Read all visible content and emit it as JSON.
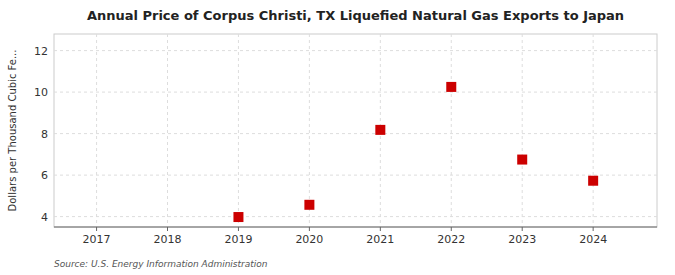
{
  "chart_data": {
    "type": "scatter",
    "title": "Annual Price of Corpus Christi, TX  Liquefied Natural Gas Exports to Japan",
    "y_label": "Dollars per Thousand Cubic Fe...",
    "annotations": [
      "Source: U.S. Energy Information Administration"
    ],
    "x": [
      2019,
      2020,
      2021,
      2022,
      2023,
      2024
    ],
    "values": [
      3.98,
      4.57,
      8.18,
      10.25,
      6.75,
      5.73
    ],
    "color": "#cc0000",
    "marker": "square",
    "xlim": [
      2016.4,
      2024.9
    ],
    "ylim": [
      3.5,
      12.8
    ],
    "xticks": [
      2017,
      2018,
      2019,
      2020,
      2021,
      2022,
      2023,
      2024
    ],
    "yticks": [
      4,
      6,
      8,
      10,
      12
    ],
    "grid": true
  }
}
